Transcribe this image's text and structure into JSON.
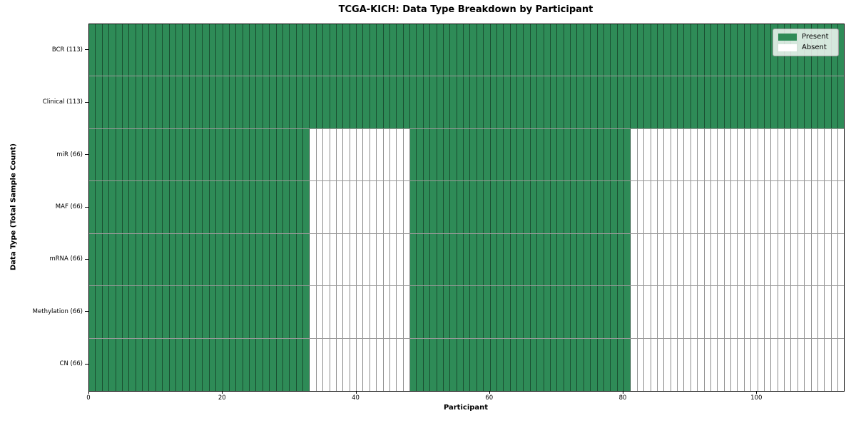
{
  "chart_data": {
    "type": "heatmap",
    "title": "TCGA-KICH: Data Type Breakdown by Participant",
    "xlabel": "Participant",
    "ylabel": "Data Type (Total Sample Count)",
    "n_participants": 113,
    "x_ticks": [
      0,
      20,
      40,
      60,
      80,
      100
    ],
    "rows": [
      {
        "label": "BCR (113)",
        "data_type": "BCR",
        "total_sample_count": 113,
        "present_ranges": [
          [
            0,
            113
          ]
        ]
      },
      {
        "label": "Clinical (113)",
        "data_type": "Clinical",
        "total_sample_count": 113,
        "present_ranges": [
          [
            0,
            113
          ]
        ]
      },
      {
        "label": "miR (66)",
        "data_type": "miR",
        "total_sample_count": 66,
        "present_ranges": [
          [
            0,
            33
          ],
          [
            48,
            81
          ]
        ]
      },
      {
        "label": "MAF (66)",
        "data_type": "MAF",
        "total_sample_count": 66,
        "present_ranges": [
          [
            0,
            33
          ],
          [
            48,
            81
          ]
        ]
      },
      {
        "label": "mRNA (66)",
        "data_type": "mRNA",
        "total_sample_count": 66,
        "present_ranges": [
          [
            0,
            33
          ],
          [
            48,
            81
          ]
        ]
      },
      {
        "label": "Methylation (66)",
        "data_type": "Methylation",
        "total_sample_count": 66,
        "present_ranges": [
          [
            0,
            33
          ],
          [
            48,
            81
          ]
        ]
      },
      {
        "label": "CN (66)",
        "data_type": "CN",
        "total_sample_count": 66,
        "present_ranges": [
          [
            0,
            33
          ],
          [
            48,
            81
          ]
        ]
      }
    ],
    "legend": [
      {
        "label": "Present",
        "color": "#2e8b57"
      },
      {
        "label": "Absent",
        "color": "#ffffff"
      }
    ],
    "colors": {
      "present": "#2e8b57",
      "absent": "#ffffff",
      "cell_edge": "rgba(0,0,0,0.45)",
      "spine": "#000000"
    },
    "legend_position": "upper right",
    "grid": "cell-borders"
  }
}
